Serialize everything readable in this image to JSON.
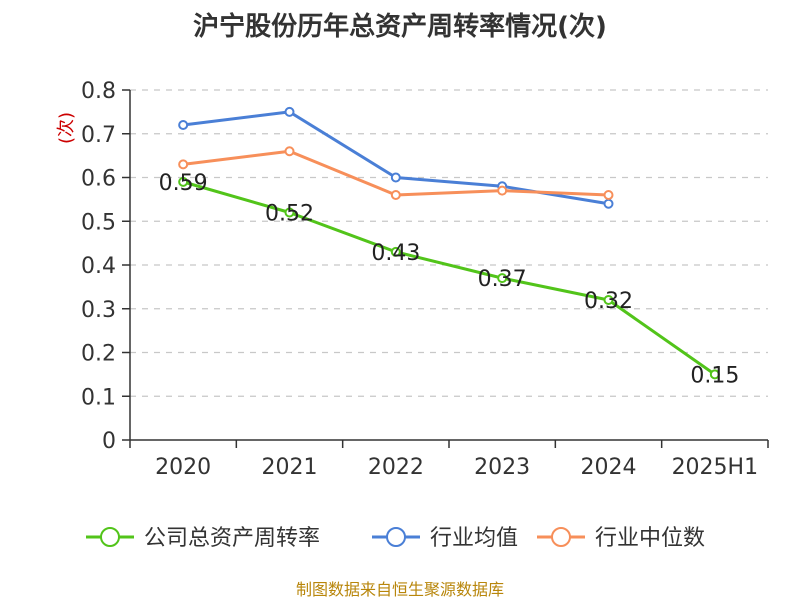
{
  "chart_data": {
    "type": "line",
    "title": "沪宁股份历年总资产周转率情况(次)",
    "ylabel": "(次)",
    "xlabel": "",
    "categories": [
      "2020",
      "2021",
      "2022",
      "2023",
      "2024",
      "2025H1"
    ],
    "ylim": [
      0,
      0.8
    ],
    "yticks": [
      "0",
      "0.1",
      "0.2",
      "0.3",
      "0.4",
      "0.5",
      "0.6",
      "0.7",
      "0.8"
    ],
    "grid": true,
    "legend_position": "bottom",
    "series": [
      {
        "name": "公司总资产周转率",
        "color": "#52c41a",
        "values": [
          0.59,
          0.52,
          0.43,
          0.37,
          0.32,
          0.15
        ],
        "labels": [
          "0.59",
          "0.52",
          "0.43",
          "0.37",
          "0.32",
          "0.15"
        ]
      },
      {
        "name": "行业均值",
        "color": "#4a7fd6",
        "values": [
          0.72,
          0.75,
          0.6,
          0.58,
          0.54,
          null
        ]
      },
      {
        "name": "行业中位数",
        "color": "#f78f5a",
        "values": [
          0.63,
          0.66,
          0.56,
          0.57,
          0.56,
          null
        ]
      }
    ]
  },
  "source": "制图数据来自恒生聚源数据库"
}
